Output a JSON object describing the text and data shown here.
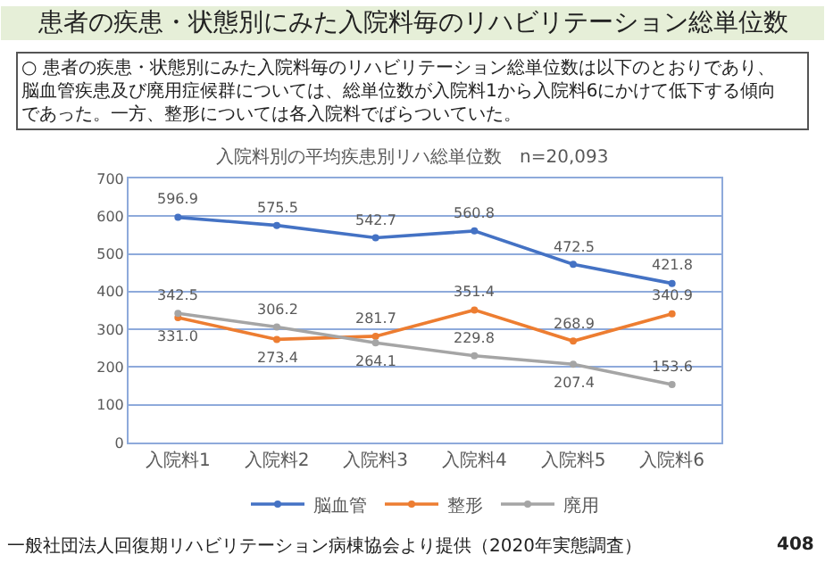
{
  "chart_data": {
    "type": "line",
    "title": "患者の疾患・状態別にみた入院料毎のリハビリテーション総単位数",
    "subtitle": "入院料別の平均疾患別リハ総単位数　n=20,093",
    "annotations": [
      "○ 患者の疾患・状態別にみた入院料毎のリハビリテーション総単位数は以下のとおりであり、脳血管疾患及び廃用症候群については、総単位数が入院料1から入院料6にかけて低下する傾向であった。一方、整形については各入院料でばらついていた。",
      "一般社団法人回復期リハビリテーション病棟協会より提供（2020年実態調査）",
      "408"
    ],
    "categories": [
      "入院料1",
      "入院料2",
      "入院料3",
      "入院料4",
      "入院料5",
      "入院料6"
    ],
    "series": [
      {
        "name": "脳血管",
        "color": "#4472c4",
        "values": [
          596.9,
          575.5,
          542.7,
          560.8,
          472.5,
          421.8
        ],
        "value_labels": [
          "596.9",
          "575.5",
          "542.7",
          "560.8",
          "472.5",
          "421.8"
        ]
      },
      {
        "name": "整形",
        "color": "#ed7d31",
        "values": [
          331.0,
          273.4,
          281.7,
          351.4,
          268.9,
          340.9
        ],
        "value_labels": [
          "331.0",
          "273.4",
          "281.7",
          "351.4",
          "268.9",
          "340.9"
        ]
      },
      {
        "name": "廃用",
        "color": "#a5a5a5",
        "values": [
          342.5,
          306.2,
          264.1,
          229.8,
          207.4,
          153.6
        ],
        "value_labels": [
          "342.5",
          "306.2",
          "264.1",
          "229.8",
          "207.4",
          "153.6"
        ]
      }
    ],
    "ylim": [
      0,
      700
    ],
    "yticks": [
      0,
      100,
      200,
      300,
      400,
      500,
      600,
      700
    ],
    "grid": "y",
    "legend": "bottom",
    "marker": "circle",
    "line_style": "solid"
  }
}
